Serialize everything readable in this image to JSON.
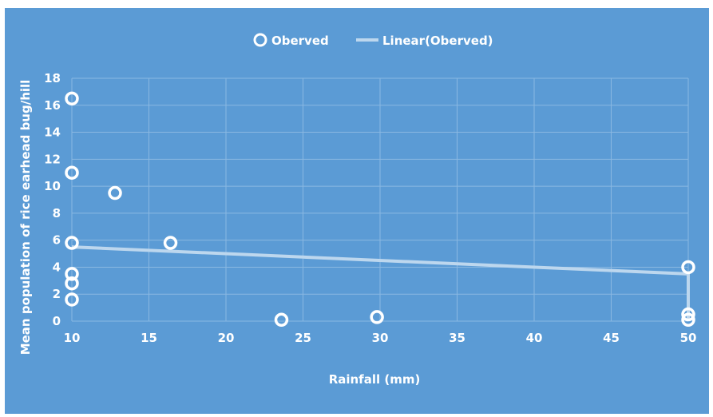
{
  "chart_data": {
    "type": "scatter",
    "title": "",
    "xlabel": "Rainfall (mm)",
    "ylabel": "Mean population of rice earhead bug/hill",
    "xlim": [
      10,
      50
    ],
    "ylim": [
      0,
      18
    ],
    "xticks": [
      "10",
      "15",
      "20",
      "25",
      "30",
      "35",
      "40",
      "45",
      "50"
    ],
    "yticks": [
      "0",
      "2",
      "4",
      "6",
      "8",
      "10",
      "12",
      "14",
      "16",
      "18"
    ],
    "grid": true,
    "legend_position": "top-center",
    "legend": [
      "Oberved",
      "Linear(Oberved)"
    ],
    "series": [
      {
        "name": "Oberved",
        "points": [
          {
            "x": 10,
            "y": 16.5
          },
          {
            "x": 10,
            "y": 11
          },
          {
            "x": 10,
            "y": 5.8
          },
          {
            "x": 10,
            "y": 3.5
          },
          {
            "x": 10,
            "y": 2.8
          },
          {
            "x": 10,
            "y": 1.6
          },
          {
            "x": 12.8,
            "y": 9.5
          },
          {
            "x": 16.4,
            "y": 5.8
          },
          {
            "x": 23.6,
            "y": 0.1
          },
          {
            "x": 29.8,
            "y": 0.3
          },
          {
            "x": 50,
            "y": 4.0
          },
          {
            "x": 50,
            "y": 0.5
          },
          {
            "x": 50,
            "y": 0.1
          }
        ]
      },
      {
        "name": "Linear(Oberved)",
        "points": [
          {
            "x": 10,
            "y": 5.5
          },
          {
            "x": 50,
            "y": 3.5
          },
          {
            "x": 50,
            "y": 0.1
          }
        ]
      }
    ],
    "colors": {
      "background": "#5b9bd5",
      "marker": "#ffffff",
      "trendline": "#bdd7ee",
      "grid": "#8ab8e2"
    }
  }
}
